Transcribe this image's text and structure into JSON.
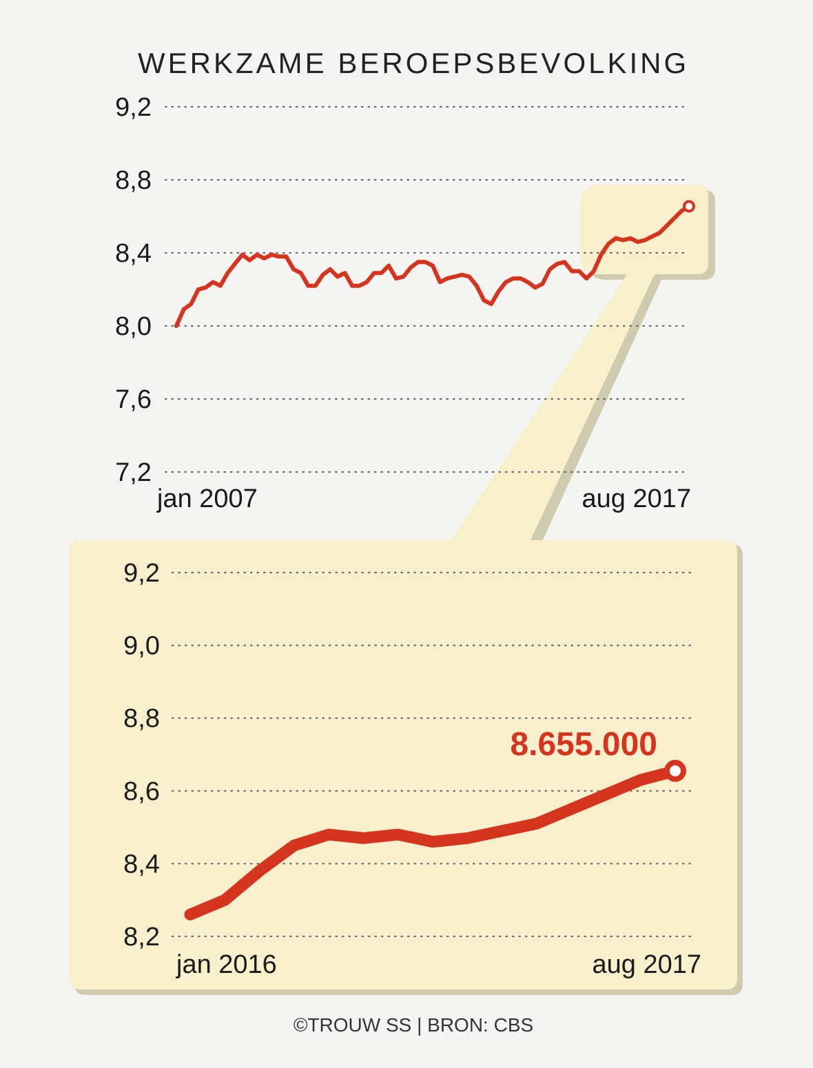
{
  "title": "WERKZAME BEROEPSBEVOLKING",
  "credit": "©TROUW SS | BRON: CBS",
  "colors": {
    "background": "#f4f4f2",
    "line": "#d5351f",
    "panel": "#f8efcc",
    "panel_shadow": "#cfcbae",
    "grid": "#666666",
    "text": "#1a1a1a"
  },
  "chart_data": [
    {
      "type": "line",
      "title": "WERKZAME BEROEPSBEVOLKING",
      "xlabel": "",
      "ylabel": "",
      "ylim": [
        7.2,
        9.2
      ],
      "yticks": [
        9.2,
        8.8,
        8.4,
        8.0,
        7.6,
        7.2
      ],
      "ytick_labels": [
        "9,2",
        "8,8",
        "8,4",
        "8,0",
        "7,6",
        "7,2"
      ],
      "x_start_label": "jan 2007",
      "x_end_label": "aug 2017",
      "grid": true,
      "series": [
        {
          "values": [
            8.0,
            8.09,
            8.12,
            8.2,
            8.21,
            8.24,
            8.22,
            8.29,
            8.34,
            8.39,
            8.36,
            8.39,
            8.37,
            8.39,
            8.38,
            8.38,
            8.31,
            8.29,
            8.22,
            8.22,
            8.28,
            8.31,
            8.27,
            8.29,
            8.22,
            8.22,
            8.24,
            8.29,
            8.29,
            8.33,
            8.26,
            8.27,
            8.32,
            8.35,
            8.35,
            8.33,
            8.24,
            8.26,
            8.27,
            8.28,
            8.27,
            8.22,
            8.14,
            8.12,
            8.19,
            8.24,
            8.26,
            8.26,
            8.24,
            8.21,
            8.23,
            8.31,
            8.34,
            8.35,
            8.3,
            8.3,
            8.26,
            8.3,
            8.39,
            8.45,
            8.48,
            8.47,
            8.48,
            8.46,
            8.47,
            8.49,
            8.51,
            8.55,
            8.59,
            8.63,
            8.655
          ]
        }
      ]
    },
    {
      "type": "line",
      "xlabel": "",
      "ylabel": "",
      "ylim": [
        8.2,
        9.2
      ],
      "yticks": [
        9.2,
        9.0,
        8.8,
        8.6,
        8.4,
        8.2
      ],
      "ytick_labels": [
        "9,2",
        "9,0",
        "8,8",
        "8,6",
        "8,4",
        "8,2"
      ],
      "x_start_label": "jan 2016",
      "x_end_label": "aug 2017",
      "grid": true,
      "annotation": "8.655.000",
      "series": [
        {
          "values": [
            8.26,
            8.3,
            8.38,
            8.45,
            8.48,
            8.47,
            8.48,
            8.46,
            8.47,
            8.49,
            8.51,
            8.55,
            8.59,
            8.63,
            8.655
          ]
        }
      ]
    }
  ]
}
